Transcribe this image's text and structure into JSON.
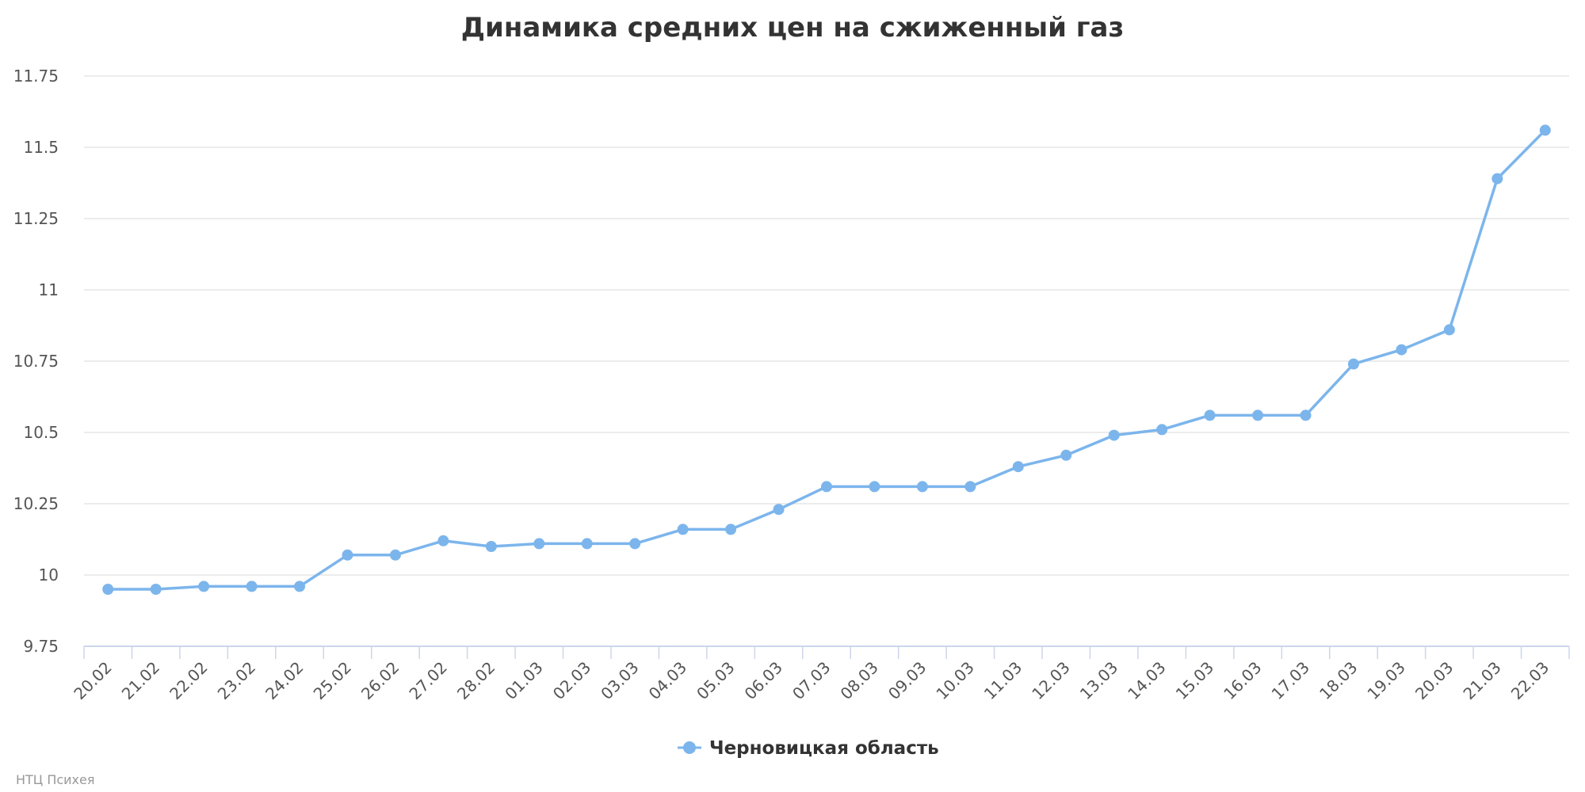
{
  "colors": {
    "series": "#7cb5ec",
    "grid": "#e6e6e6",
    "axis": "#ccd6eb",
    "text": "#333333",
    "tick_text": "#555555",
    "credits": "#999999"
  },
  "chart_data": {
    "type": "line",
    "title": "Динамика средних цен на сжиженный газ",
    "xlabel": "",
    "ylabel": "",
    "ylim": [
      9.75,
      11.75
    ],
    "y_ticks": [
      "9.75",
      "10",
      "10.25",
      "10.5",
      "10.75",
      "11",
      "11.25",
      "11.5",
      "11.75"
    ],
    "categories": [
      "20.02",
      "21.02",
      "22.02",
      "23.02",
      "24.02",
      "25.02",
      "26.02",
      "27.02",
      "28.02",
      "01.03",
      "02.03",
      "03.03",
      "04.03",
      "05.03",
      "06.03",
      "07.03",
      "08.03",
      "09.03",
      "10.03",
      "11.03",
      "12.03",
      "13.03",
      "14.03",
      "15.03",
      "16.03",
      "17.03",
      "18.03",
      "19.03",
      "20.03",
      "21.03",
      "22.03"
    ],
    "series": [
      {
        "name": "Черновицкая область",
        "values": [
          9.95,
          9.95,
          9.96,
          9.96,
          9.96,
          10.07,
          10.07,
          10.12,
          10.1,
          10.11,
          10.11,
          10.11,
          10.16,
          10.16,
          10.23,
          10.31,
          10.31,
          10.31,
          10.31,
          10.38,
          10.42,
          10.49,
          10.51,
          10.56,
          10.56,
          10.56,
          10.74,
          10.79,
          10.86,
          11.39,
          11.56
        ]
      }
    ],
    "grid": true,
    "legend_position": "bottom-center"
  },
  "credits": "НТЦ Психея"
}
